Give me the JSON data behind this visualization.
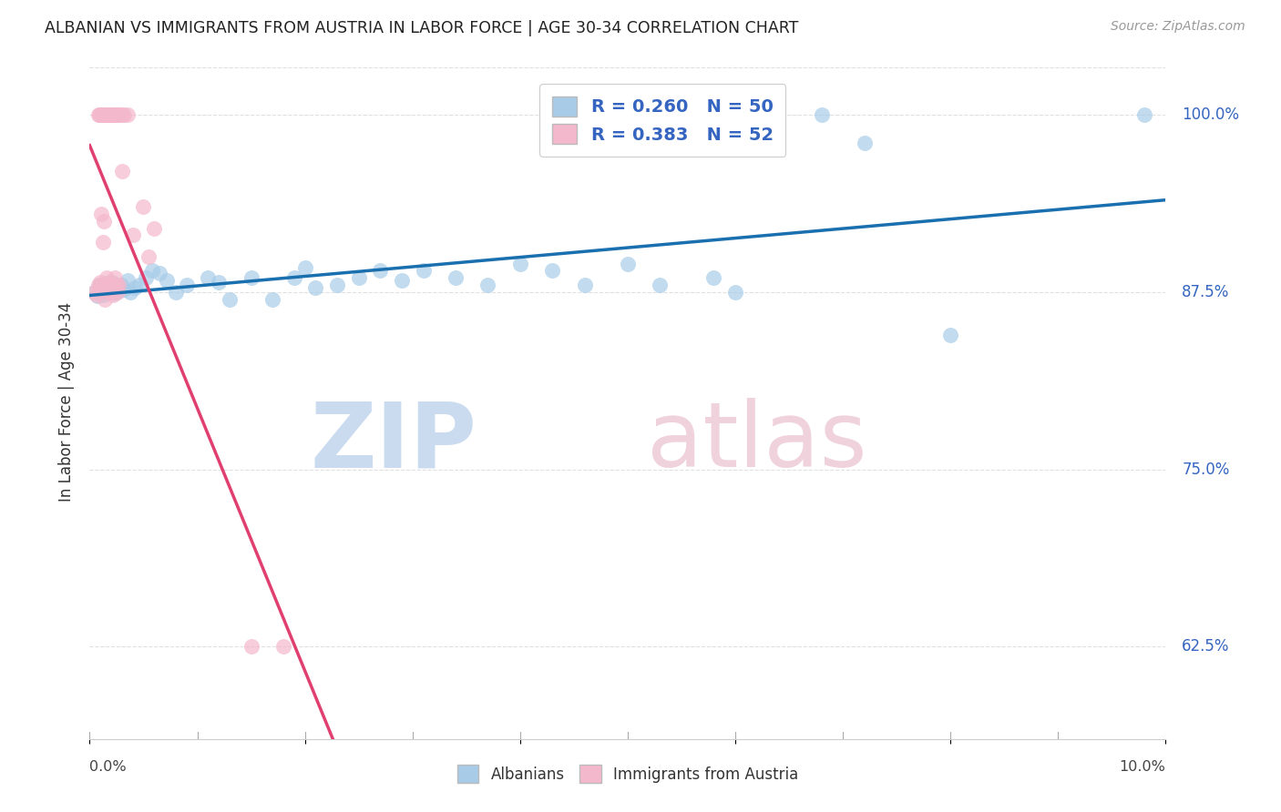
{
  "title": "ALBANIAN VS IMMIGRANTS FROM AUSTRIA IN LABOR FORCE | AGE 30-34 CORRELATION CHART",
  "source": "Source: ZipAtlas.com",
  "ylabel": "In Labor Force | Age 30-34",
  "xlim": [
    0.0,
    10.0
  ],
  "ylim": [
    56.0,
    103.5
  ],
  "yticks": [
    62.5,
    75.0,
    87.5,
    100.0
  ],
  "legend_blue_r": "0.260",
  "legend_blue_n": "50",
  "legend_pink_r": "0.383",
  "legend_pink_n": "52",
  "legend_label_blue": "Albanians",
  "legend_label_pink": "Immigrants from Austria",
  "blue_fill": "#a8cce8",
  "pink_fill": "#f4b8cc",
  "blue_line": "#1a6faf",
  "pink_line": "#e04070",
  "legend_text_color": "#3565c0",
  "right_axis_color": "#3565c0",
  "background_color": "#ffffff",
  "grid_color": "#e0e0e0",
  "title_color": "#222222",
  "source_color": "#999999",
  "blue_points": [
    [
      0.05,
      87.5
    ],
    [
      0.07,
      87.2
    ],
    [
      0.09,
      88.0
    ],
    [
      0.11,
      87.6
    ],
    [
      0.13,
      87.3
    ],
    [
      0.15,
      88.1
    ],
    [
      0.17,
      87.8
    ],
    [
      0.19,
      87.5
    ],
    [
      0.21,
      88.2
    ],
    [
      0.23,
      87.4
    ],
    [
      0.25,
      87.9
    ],
    [
      0.27,
      87.6
    ],
    [
      0.29,
      88.0
    ],
    [
      0.32,
      87.7
    ],
    [
      0.35,
      88.3
    ],
    [
      0.38,
      87.5
    ],
    [
      0.42,
      87.8
    ],
    [
      0.46,
      88.0
    ],
    [
      0.52,
      88.5
    ],
    [
      0.58,
      89.0
    ],
    [
      0.65,
      88.8
    ],
    [
      0.72,
      88.3
    ],
    [
      0.8,
      87.5
    ],
    [
      0.9,
      88.0
    ],
    [
      1.1,
      88.5
    ],
    [
      1.2,
      88.2
    ],
    [
      1.3,
      87.0
    ],
    [
      1.5,
      88.5
    ],
    [
      1.7,
      87.0
    ],
    [
      1.9,
      88.5
    ],
    [
      2.0,
      89.2
    ],
    [
      2.1,
      87.8
    ],
    [
      2.3,
      88.0
    ],
    [
      2.5,
      88.5
    ],
    [
      2.7,
      89.0
    ],
    [
      2.9,
      88.3
    ],
    [
      3.1,
      89.0
    ],
    [
      3.4,
      88.5
    ],
    [
      3.7,
      88.0
    ],
    [
      4.0,
      89.5
    ],
    [
      4.3,
      89.0
    ],
    [
      4.6,
      88.0
    ],
    [
      5.0,
      89.5
    ],
    [
      5.3,
      88.0
    ],
    [
      5.8,
      88.5
    ],
    [
      6.0,
      87.5
    ],
    [
      6.8,
      100.0
    ],
    [
      7.2,
      98.0
    ],
    [
      8.0,
      84.5
    ],
    [
      9.8,
      100.0
    ]
  ],
  "pink_points": [
    [
      0.04,
      87.5
    ],
    [
      0.06,
      87.3
    ],
    [
      0.08,
      88.0
    ],
    [
      0.09,
      87.8
    ],
    [
      0.1,
      88.2
    ],
    [
      0.11,
      93.0
    ],
    [
      0.12,
      91.0
    ],
    [
      0.13,
      92.5
    ],
    [
      0.14,
      87.0
    ],
    [
      0.15,
      88.0
    ],
    [
      0.16,
      88.5
    ],
    [
      0.17,
      87.5
    ],
    [
      0.18,
      88.2
    ],
    [
      0.19,
      88.0
    ],
    [
      0.2,
      87.5
    ],
    [
      0.21,
      88.0
    ],
    [
      0.22,
      87.3
    ],
    [
      0.23,
      88.5
    ],
    [
      0.24,
      87.8
    ],
    [
      0.25,
      88.0
    ],
    [
      0.26,
      87.5
    ],
    [
      0.27,
      88.0
    ],
    [
      0.3,
      96.0
    ],
    [
      0.08,
      100.0
    ],
    [
      0.09,
      100.0
    ],
    [
      0.1,
      100.0
    ],
    [
      0.11,
      100.0
    ],
    [
      0.12,
      100.0
    ],
    [
      0.13,
      100.0
    ],
    [
      0.14,
      100.0
    ],
    [
      0.15,
      100.0
    ],
    [
      0.16,
      100.0
    ],
    [
      0.17,
      100.0
    ],
    [
      0.18,
      100.0
    ],
    [
      0.19,
      100.0
    ],
    [
      0.2,
      100.0
    ],
    [
      0.21,
      100.0
    ],
    [
      0.22,
      100.0
    ],
    [
      0.23,
      100.0
    ],
    [
      0.24,
      100.0
    ],
    [
      0.25,
      100.0
    ],
    [
      0.26,
      100.0
    ],
    [
      0.28,
      100.0
    ],
    [
      0.3,
      100.0
    ],
    [
      0.32,
      100.0
    ],
    [
      0.35,
      100.0
    ],
    [
      0.5,
      93.5
    ],
    [
      0.6,
      92.0
    ],
    [
      0.4,
      91.5
    ],
    [
      0.55,
      90.0
    ],
    [
      1.5,
      62.5
    ],
    [
      1.8,
      62.5
    ]
  ]
}
